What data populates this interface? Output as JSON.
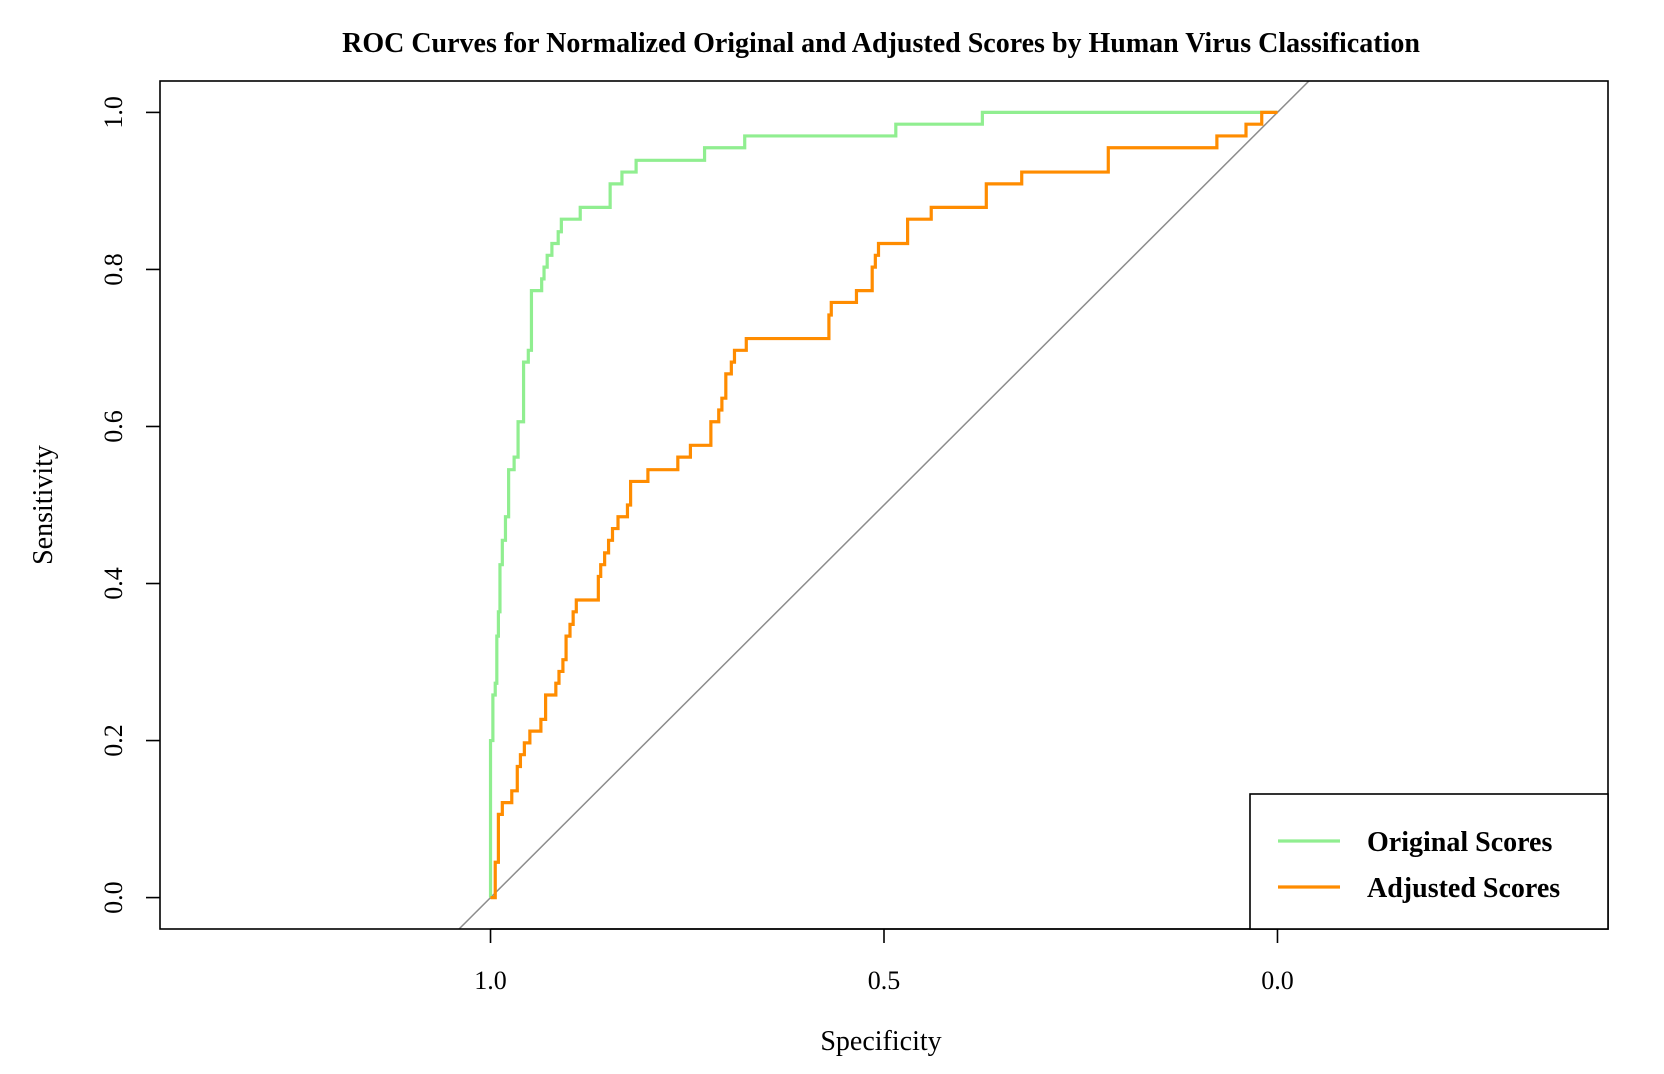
{
  "chart_data": {
    "type": "line",
    "title": "ROC Curves for Normalized Original and Adjusted Scores by Human Virus Classification",
    "xlabel": "Specificity",
    "ylabel": "Sensitivity",
    "x_reversed": true,
    "xlim": [
      1.42,
      -0.42
    ],
    "ylim": [
      -0.04,
      1.04
    ],
    "x_ticks": [
      1.0,
      0.5,
      0.0
    ],
    "x_tick_labels": [
      "1.0",
      "0.5",
      "0.0"
    ],
    "y_ticks": [
      0.0,
      0.2,
      0.4,
      0.6,
      0.8,
      1.0
    ],
    "y_tick_labels": [
      "0.0",
      "0.2",
      "0.4",
      "0.6",
      "0.8",
      "1.0"
    ],
    "grid": false,
    "legend_position": "bottom-right",
    "reference_line": {
      "from": [
        1.0,
        0.0
      ],
      "to": [
        0.0,
        1.0
      ],
      "color": "#8c8c8c"
    },
    "series": [
      {
        "name": "Original Scores",
        "color": "#90ee90",
        "points": [
          [
            1.0,
            0.0
          ],
          [
            1.0,
            0.2
          ],
          [
            0.997,
            0.2
          ],
          [
            0.997,
            0.258
          ],
          [
            0.994,
            0.258
          ],
          [
            0.994,
            0.273
          ],
          [
            0.992,
            0.273
          ],
          [
            0.992,
            0.333
          ],
          [
            0.99,
            0.333
          ],
          [
            0.99,
            0.364
          ],
          [
            0.988,
            0.364
          ],
          [
            0.988,
            0.424
          ],
          [
            0.985,
            0.424
          ],
          [
            0.985,
            0.455
          ],
          [
            0.981,
            0.455
          ],
          [
            0.981,
            0.485
          ],
          [
            0.977,
            0.485
          ],
          [
            0.977,
            0.545
          ],
          [
            0.97,
            0.545
          ],
          [
            0.97,
            0.561
          ],
          [
            0.965,
            0.561
          ],
          [
            0.965,
            0.606
          ],
          [
            0.958,
            0.606
          ],
          [
            0.958,
            0.682
          ],
          [
            0.952,
            0.682
          ],
          [
            0.952,
            0.697
          ],
          [
            0.948,
            0.697
          ],
          [
            0.948,
            0.773
          ],
          [
            0.935,
            0.773
          ],
          [
            0.935,
            0.788
          ],
          [
            0.932,
            0.788
          ],
          [
            0.932,
            0.803
          ],
          [
            0.928,
            0.803
          ],
          [
            0.928,
            0.818
          ],
          [
            0.922,
            0.818
          ],
          [
            0.922,
            0.833
          ],
          [
            0.914,
            0.833
          ],
          [
            0.914,
            0.848
          ],
          [
            0.91,
            0.848
          ],
          [
            0.91,
            0.864
          ],
          [
            0.886,
            0.864
          ],
          [
            0.886,
            0.879
          ],
          [
            0.848,
            0.879
          ],
          [
            0.848,
            0.909
          ],
          [
            0.833,
            0.909
          ],
          [
            0.833,
            0.924
          ],
          [
            0.815,
            0.924
          ],
          [
            0.815,
            0.939
          ],
          [
            0.728,
            0.939
          ],
          [
            0.728,
            0.955
          ],
          [
            0.677,
            0.955
          ],
          [
            0.677,
            0.97
          ],
          [
            0.485,
            0.97
          ],
          [
            0.485,
            0.985
          ],
          [
            0.375,
            0.985
          ],
          [
            0.375,
            1.0
          ],
          [
            0.0,
            1.0
          ]
        ]
      },
      {
        "name": "Adjusted Scores",
        "color": "#ff8c00",
        "points": [
          [
            1.0,
            0.0
          ],
          [
            0.994,
            0.0
          ],
          [
            0.994,
            0.045
          ],
          [
            0.99,
            0.045
          ],
          [
            0.99,
            0.106
          ],
          [
            0.985,
            0.106
          ],
          [
            0.985,
            0.121
          ],
          [
            0.973,
            0.121
          ],
          [
            0.973,
            0.136
          ],
          [
            0.966,
            0.136
          ],
          [
            0.966,
            0.167
          ],
          [
            0.962,
            0.167
          ],
          [
            0.962,
            0.182
          ],
          [
            0.957,
            0.182
          ],
          [
            0.957,
            0.197
          ],
          [
            0.95,
            0.197
          ],
          [
            0.95,
            0.212
          ],
          [
            0.936,
            0.212
          ],
          [
            0.936,
            0.227
          ],
          [
            0.93,
            0.227
          ],
          [
            0.93,
            0.258
          ],
          [
            0.917,
            0.258
          ],
          [
            0.917,
            0.273
          ],
          [
            0.913,
            0.273
          ],
          [
            0.913,
            0.288
          ],
          [
            0.908,
            0.288
          ],
          [
            0.908,
            0.303
          ],
          [
            0.904,
            0.303
          ],
          [
            0.904,
            0.333
          ],
          [
            0.899,
            0.333
          ],
          [
            0.899,
            0.348
          ],
          [
            0.895,
            0.348
          ],
          [
            0.895,
            0.364
          ],
          [
            0.891,
            0.364
          ],
          [
            0.891,
            0.379
          ],
          [
            0.863,
            0.379
          ],
          [
            0.863,
            0.409
          ],
          [
            0.86,
            0.409
          ],
          [
            0.86,
            0.424
          ],
          [
            0.855,
            0.424
          ],
          [
            0.855,
            0.439
          ],
          [
            0.85,
            0.439
          ],
          [
            0.85,
            0.455
          ],
          [
            0.845,
            0.455
          ],
          [
            0.845,
            0.47
          ],
          [
            0.838,
            0.47
          ],
          [
            0.838,
            0.485
          ],
          [
            0.826,
            0.485
          ],
          [
            0.826,
            0.5
          ],
          [
            0.822,
            0.5
          ],
          [
            0.822,
            0.53
          ],
          [
            0.8,
            0.53
          ],
          [
            0.8,
            0.545
          ],
          [
            0.762,
            0.545
          ],
          [
            0.762,
            0.561
          ],
          [
            0.746,
            0.561
          ],
          [
            0.746,
            0.576
          ],
          [
            0.72,
            0.576
          ],
          [
            0.72,
            0.606
          ],
          [
            0.71,
            0.606
          ],
          [
            0.71,
            0.621
          ],
          [
            0.706,
            0.621
          ],
          [
            0.706,
            0.636
          ],
          [
            0.701,
            0.636
          ],
          [
            0.701,
            0.667
          ],
          [
            0.694,
            0.667
          ],
          [
            0.694,
            0.682
          ],
          [
            0.69,
            0.682
          ],
          [
            0.69,
            0.697
          ],
          [
            0.675,
            0.697
          ],
          [
            0.675,
            0.712
          ],
          [
            0.57,
            0.712
          ],
          [
            0.57,
            0.742
          ],
          [
            0.567,
            0.742
          ],
          [
            0.567,
            0.758
          ],
          [
            0.535,
            0.758
          ],
          [
            0.535,
            0.773
          ],
          [
            0.515,
            0.773
          ],
          [
            0.515,
            0.803
          ],
          [
            0.511,
            0.803
          ],
          [
            0.511,
            0.818
          ],
          [
            0.507,
            0.818
          ],
          [
            0.507,
            0.833
          ],
          [
            0.47,
            0.833
          ],
          [
            0.47,
            0.864
          ],
          [
            0.44,
            0.864
          ],
          [
            0.44,
            0.879
          ],
          [
            0.37,
            0.879
          ],
          [
            0.37,
            0.909
          ],
          [
            0.325,
            0.909
          ],
          [
            0.325,
            0.924
          ],
          [
            0.215,
            0.924
          ],
          [
            0.215,
            0.955
          ],
          [
            0.077,
            0.955
          ],
          [
            0.077,
            0.97
          ],
          [
            0.04,
            0.97
          ],
          [
            0.04,
            0.985
          ],
          [
            0.02,
            0.985
          ],
          [
            0.02,
            1.0
          ],
          [
            0.0,
            1.0
          ]
        ]
      }
    ]
  }
}
